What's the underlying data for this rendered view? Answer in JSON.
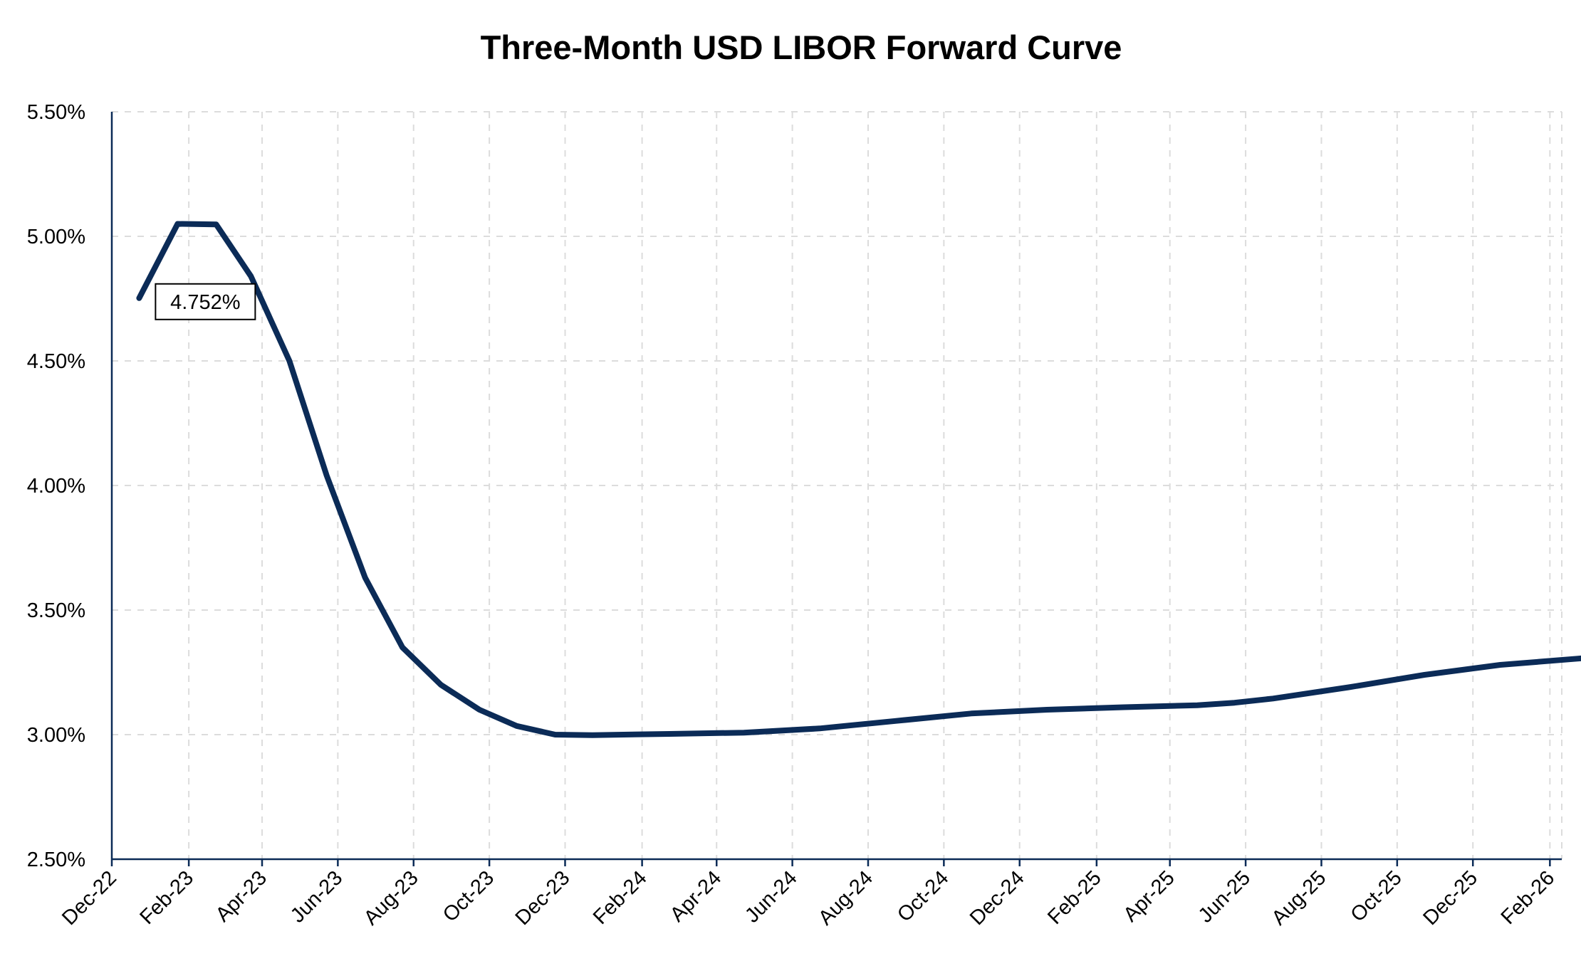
{
  "chart_data": {
    "type": "line",
    "title": "Three-Month USD LIBOR Forward Curve",
    "xlabel": "",
    "ylabel": "",
    "ylim": [
      2.5,
      5.5
    ],
    "y_ticks": [
      "2.50%",
      "3.00%",
      "3.50%",
      "4.00%",
      "4.50%",
      "5.00%",
      "5.50%"
    ],
    "y_tick_values": [
      2.5,
      3.0,
      3.5,
      4.0,
      4.5,
      5.0,
      5.5
    ],
    "x_ticks": [
      "Dec-22",
      "Feb-23",
      "Apr-23",
      "Jun-23",
      "Aug-23",
      "Oct-23",
      "Dec-23",
      "Feb-24",
      "Apr-24",
      "Jun-24",
      "Aug-24",
      "Oct-24",
      "Dec-24",
      "Feb-25",
      "Apr-25",
      "Jun-25",
      "Aug-25",
      "Oct-25",
      "Dec-25",
      "Feb-26"
    ],
    "grid": true,
    "legend": "none",
    "annotation": {
      "label": "4.752%",
      "x": "2022-12-23",
      "y": 4.752
    },
    "series": [
      {
        "color": "#0b2b57",
        "x": [
          "2022-12-23",
          "2023-01-23",
          "2023-02-23",
          "2023-03-23",
          "2023-04-23",
          "2023-05-23",
          "2023-06-23",
          "2023-07-23",
          "2023-08-23",
          "2023-09-23",
          "2023-10-23",
          "2023-11-23",
          "2023-12-23",
          "2024-02-23",
          "2024-04-23",
          "2024-06-23",
          "2024-08-23",
          "2024-10-23",
          "2024-12-23",
          "2025-02-23",
          "2025-04-23",
          "2025-05-23",
          "2025-06-23",
          "2025-08-23",
          "2025-10-23",
          "2025-12-23",
          "2026-02-23",
          "2026-03-23"
        ],
        "values": [
          4.752,
          5.05,
          5.048,
          4.84,
          4.5,
          4.04,
          3.63,
          3.35,
          3.2,
          3.1,
          3.035,
          3.0,
          2.998,
          3.003,
          3.008,
          3.025,
          3.055,
          3.085,
          3.1,
          3.11,
          3.118,
          3.128,
          3.145,
          3.19,
          3.24,
          3.28,
          3.305,
          3.315
        ]
      }
    ]
  }
}
